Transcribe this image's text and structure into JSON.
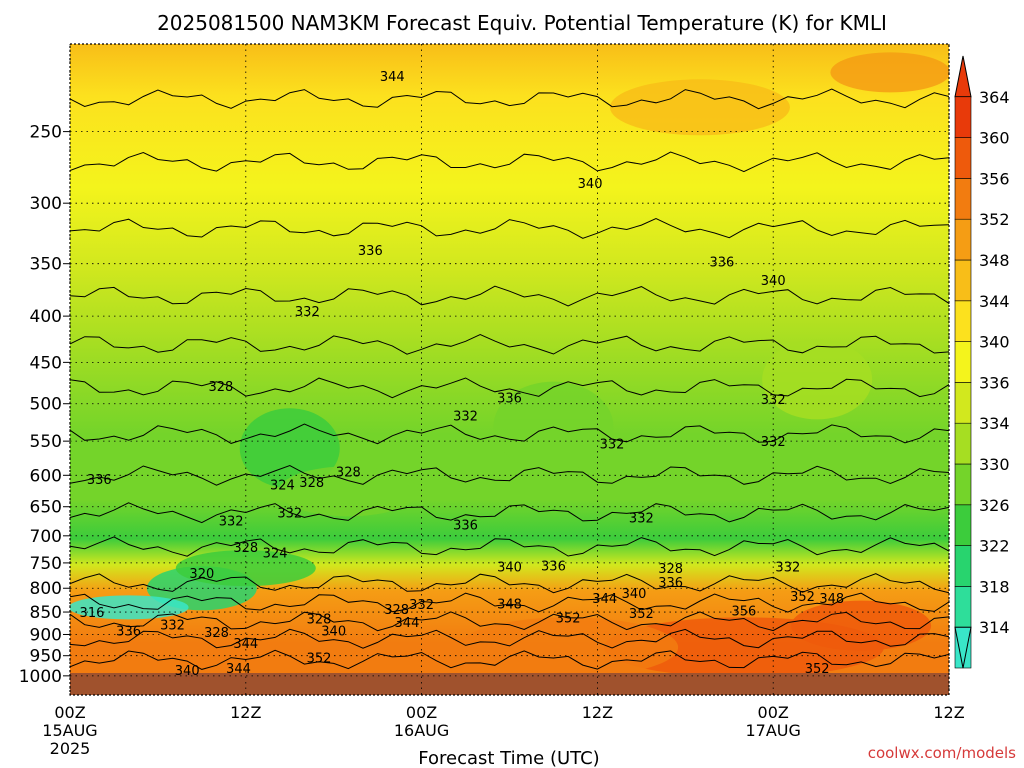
{
  "title": "2025081500 NAM3KM Forecast Equiv. Potential Temperature (K) for KMLI",
  "credit": "coolwx.com/models",
  "chart_data": {
    "type": "heatmap",
    "title": "2025081500 NAM3KM Forecast Equiv. Potential Temperature (K) for KMLI",
    "xlabel": "Forecast Time (UTC)",
    "ylabel": "",
    "y_scale": "log-pressure",
    "ylim": [
      1050,
      200
    ],
    "xlim": [
      0,
      60
    ],
    "grid": true,
    "x_ticks": [
      {
        "hours": 0,
        "label": "00Z",
        "sub": "15AUG",
        "sub2": "2025"
      },
      {
        "hours": 12,
        "label": "12Z",
        "sub": "",
        "sub2": ""
      },
      {
        "hours": 24,
        "label": "00Z",
        "sub": "16AUG",
        "sub2": ""
      },
      {
        "hours": 36,
        "label": "12Z",
        "sub": "",
        "sub2": ""
      },
      {
        "hours": 48,
        "label": "00Z",
        "sub": "17AUG",
        "sub2": ""
      },
      {
        "hours": 60,
        "label": "12Z",
        "sub": "",
        "sub2": ""
      }
    ],
    "y_ticks": [
      250,
      300,
      350,
      400,
      450,
      500,
      550,
      600,
      650,
      700,
      750,
      800,
      850,
      900,
      950,
      1000
    ],
    "y_tick_labels": [
      "250",
      "300",
      "350",
      "400",
      "450",
      "500",
      "550",
      "600",
      "650",
      "700",
      "750",
      "800",
      "850",
      "900",
      "950",
      "1000"
    ],
    "surface_pressure": 1000,
    "colorbar": {
      "values": [
        314,
        318,
        322,
        326,
        330,
        334,
        336,
        340,
        344,
        348,
        352,
        356,
        360,
        364
      ],
      "labels": [
        "314",
        "318",
        "322",
        "326",
        "330",
        "334",
        "336",
        "340",
        "344",
        "348",
        "352",
        "356",
        "360",
        "364"
      ],
      "colors": [
        "#39e6c8",
        "#2ede9a",
        "#28d46e",
        "#3ccc3c",
        "#74d42a",
        "#a6de22",
        "#d2e81e",
        "#f4f41c",
        "#fce11e",
        "#f8be18",
        "#f59d14",
        "#f27c10",
        "#ee5a0c",
        "#e83a0a"
      ]
    },
    "contour_labels": [
      {
        "hours": 27.0,
        "pressure": 515,
        "value": "332"
      },
      {
        "hours": 35.5,
        "pressure": 285,
        "value": "340"
      },
      {
        "hours": 20.5,
        "pressure": 338,
        "value": "336"
      },
      {
        "hours": 16.2,
        "pressure": 395,
        "value": "332"
      },
      {
        "hours": 10.3,
        "pressure": 478,
        "value": "328"
      },
      {
        "hours": 30.0,
        "pressure": 492,
        "value": "336"
      },
      {
        "hours": 44.5,
        "pressure": 348,
        "value": "336"
      },
      {
        "hours": 48.0,
        "pressure": 365,
        "value": "340"
      },
      {
        "hours": 48.0,
        "pressure": 494,
        "value": "332"
      },
      {
        "hours": 48.0,
        "pressure": 550,
        "value": "332"
      },
      {
        "hours": 37.0,
        "pressure": 553,
        "value": "332"
      },
      {
        "hours": 2.0,
        "pressure": 606,
        "value": "336"
      },
      {
        "hours": 14.5,
        "pressure": 614,
        "value": "324"
      },
      {
        "hours": 16.5,
        "pressure": 610,
        "value": "328"
      },
      {
        "hours": 19.0,
        "pressure": 594,
        "value": "328"
      },
      {
        "hours": 15.0,
        "pressure": 660,
        "value": "332"
      },
      {
        "hours": 11.0,
        "pressure": 673,
        "value": "332"
      },
      {
        "hours": 27.0,
        "pressure": 680,
        "value": "336"
      },
      {
        "hours": 39.0,
        "pressure": 668,
        "value": "332"
      },
      {
        "hours": 12.0,
        "pressure": 720,
        "value": "328"
      },
      {
        "hours": 14.0,
        "pressure": 730,
        "value": "324"
      },
      {
        "hours": 9.0,
        "pressure": 770,
        "value": "320"
      },
      {
        "hours": 30.0,
        "pressure": 757,
        "value": "340"
      },
      {
        "hours": 33.0,
        "pressure": 755,
        "value": "336"
      },
      {
        "hours": 41.0,
        "pressure": 760,
        "value": "328"
      },
      {
        "hours": 41.0,
        "pressure": 787,
        "value": "336"
      },
      {
        "hours": 49.0,
        "pressure": 757,
        "value": "332"
      },
      {
        "hours": 38.5,
        "pressure": 810,
        "value": "340"
      },
      {
        "hours": 36.5,
        "pressure": 820,
        "value": "344"
      },
      {
        "hours": 50.0,
        "pressure": 816,
        "value": "352"
      },
      {
        "hours": 52.0,
        "pressure": 820,
        "value": "348"
      },
      {
        "hours": 30.0,
        "pressure": 832,
        "value": "348"
      },
      {
        "hours": 34.0,
        "pressure": 862,
        "value": "352"
      },
      {
        "hours": 39.0,
        "pressure": 852,
        "value": "352"
      },
      {
        "hours": 46.0,
        "pressure": 847,
        "value": "356"
      },
      {
        "hours": 22.3,
        "pressure": 843,
        "value": "328"
      },
      {
        "hours": 24.0,
        "pressure": 833,
        "value": "332"
      },
      {
        "hours": 23.0,
        "pressure": 872,
        "value": "344"
      },
      {
        "hours": 1.5,
        "pressure": 850,
        "value": "316"
      },
      {
        "hours": 7.0,
        "pressure": 877,
        "value": "332"
      },
      {
        "hours": 4.0,
        "pressure": 891,
        "value": "336"
      },
      {
        "hours": 10.0,
        "pressure": 894,
        "value": "328"
      },
      {
        "hours": 12.0,
        "pressure": 920,
        "value": "344"
      },
      {
        "hours": 17.0,
        "pressure": 864,
        "value": "328"
      },
      {
        "hours": 18.0,
        "pressure": 891,
        "value": "340"
      },
      {
        "hours": 17.0,
        "pressure": 954,
        "value": "352"
      },
      {
        "hours": 8.0,
        "pressure": 985,
        "value": "340"
      },
      {
        "hours": 11.5,
        "pressure": 980,
        "value": "344"
      },
      {
        "hours": 51.0,
        "pressure": 980,
        "value": "352"
      },
      {
        "hours": 22.0,
        "pressure": 217,
        "value": "344"
      }
    ]
  }
}
